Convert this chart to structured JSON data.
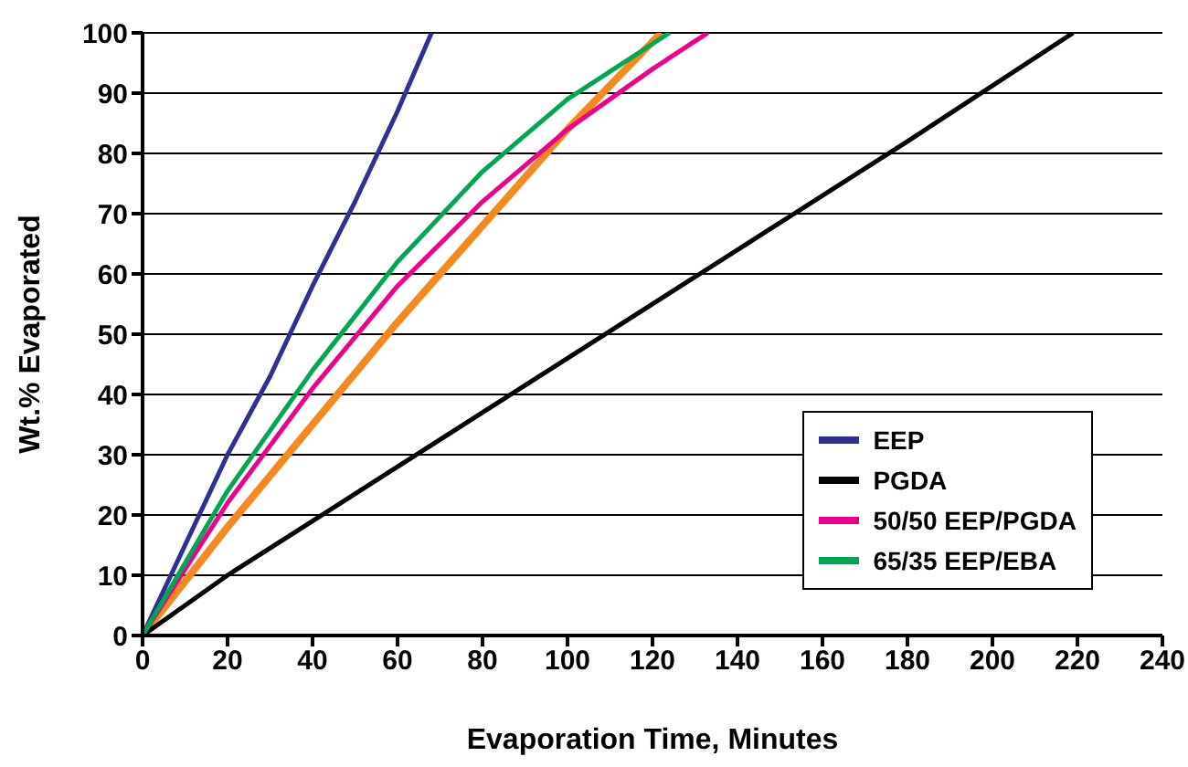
{
  "chart_data": {
    "type": "line",
    "xlabel": "Evaporation Time, Minutes",
    "ylabel": "Wt.% Evaporated",
    "xlim": [
      0,
      240
    ],
    "xticks": [
      0,
      20,
      40,
      60,
      80,
      100,
      120,
      140,
      160,
      180,
      200,
      220,
      240
    ],
    "ylim": [
      0,
      100
    ],
    "yticks": [
      0,
      10,
      20,
      30,
      40,
      50,
      60,
      70,
      80,
      90,
      100
    ],
    "grid": "y",
    "legend": "bottom right",
    "marker": "none",
    "line_style": "solid",
    "series": [
      {
        "color": "#f5891f",
        "x": [
          0,
          20,
          40,
          60,
          80,
          100,
          122
        ],
        "values": [
          0,
          18,
          35,
          52,
          68,
          84,
          100
        ]
      },
      {
        "name": "EEP",
        "color": "#2e3192",
        "x": [
          0,
          10,
          20,
          30,
          40,
          50,
          60,
          68
        ],
        "values": [
          0,
          15,
          30,
          43,
          58,
          72,
          87,
          100
        ]
      },
      {
        "name": "PGDA",
        "color": "#000000",
        "x": [
          0,
          20,
          40,
          60,
          100,
          140,
          180,
          219
        ],
        "values": [
          0,
          10,
          19,
          28,
          46,
          64,
          82,
          100
        ]
      },
      {
        "name": "50/50 EEP/PGDA",
        "color": "#ec008c",
        "x": [
          0,
          20,
          40,
          60,
          80,
          100,
          120,
          133
        ],
        "values": [
          0,
          22,
          41,
          58,
          72,
          84,
          94,
          100
        ]
      },
      {
        "name": "65/35 EEP/EBA",
        "color": "#00a651",
        "x": [
          0,
          20,
          40,
          60,
          80,
          100,
          124
        ],
        "values": [
          0,
          24,
          44,
          62,
          77,
          89,
          100
        ]
      }
    ]
  }
}
